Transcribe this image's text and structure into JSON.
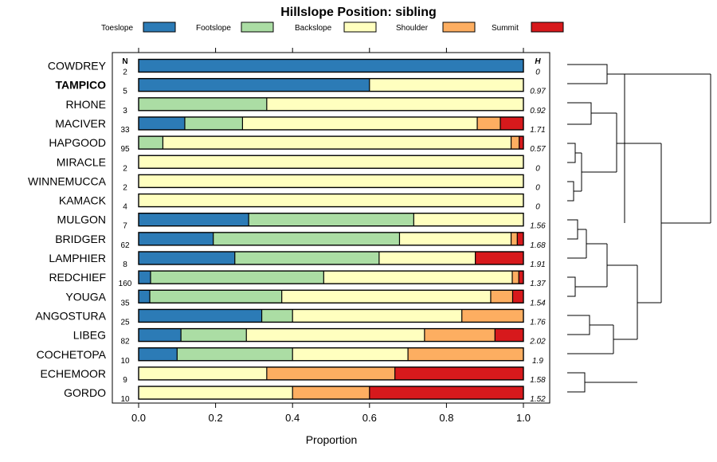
{
  "chart_data": {
    "type": "stacked-bar-horizontal",
    "title": "Hillslope Position: sibling",
    "xlabel": "Proportion",
    "xlim": [
      0,
      1
    ],
    "xticks": [
      "0.0",
      "0.2",
      "0.4",
      "0.6",
      "0.8",
      "1.0"
    ],
    "n_header": "N",
    "h_header": "H",
    "legend": [
      {
        "name": "Toeslope",
        "color": "#2c7bb6"
      },
      {
        "name": "Footslope",
        "color": "#abdda4"
      },
      {
        "name": "Backslope",
        "color": "#ffffbf"
      },
      {
        "name": "Shoulder",
        "color": "#fdae61"
      },
      {
        "name": "Summit",
        "color": "#d7191c"
      }
    ],
    "rows": [
      {
        "name": "COWDREY",
        "n": "2",
        "h": "0",
        "bold": false,
        "values": [
          1.0,
          0,
          0,
          0,
          0
        ]
      },
      {
        "name": "TAMPICO",
        "n": "5",
        "h": "0.97",
        "bold": true,
        "values": [
          0.6,
          0,
          0.4,
          0,
          0
        ]
      },
      {
        "name": "RHONE",
        "n": "3",
        "h": "0.92",
        "bold": false,
        "values": [
          0,
          0.333,
          0.667,
          0,
          0
        ]
      },
      {
        "name": "MACIVER",
        "n": "33",
        "h": "1.71",
        "bold": false,
        "values": [
          0.12,
          0.15,
          0.61,
          0.06,
          0.06
        ]
      },
      {
        "name": "HAPGOOD",
        "n": "95",
        "h": "0.57",
        "bold": false,
        "values": [
          0,
          0.063,
          0.905,
          0.021,
          0.011
        ]
      },
      {
        "name": "MIRACLE",
        "n": "2",
        "h": "0",
        "bold": false,
        "values": [
          0,
          0,
          1.0,
          0,
          0
        ]
      },
      {
        "name": "WINNEMUCCA",
        "n": "2",
        "h": "0",
        "bold": false,
        "values": [
          0,
          0,
          1.0,
          0,
          0
        ]
      },
      {
        "name": "KAMACK",
        "n": "4",
        "h": "0",
        "bold": false,
        "values": [
          0,
          0,
          1.0,
          0,
          0
        ]
      },
      {
        "name": "MULGON",
        "n": "7",
        "h": "1.56",
        "bold": false,
        "values": [
          0.286,
          0.429,
          0.285,
          0,
          0
        ]
      },
      {
        "name": "BRIDGER",
        "n": "62",
        "h": "1.68",
        "bold": false,
        "values": [
          0.194,
          0.484,
          0.29,
          0.016,
          0.016
        ]
      },
      {
        "name": "LAMPHIER",
        "n": "8",
        "h": "1.91",
        "bold": false,
        "values": [
          0.25,
          0.375,
          0.25,
          0,
          0.125
        ]
      },
      {
        "name": "REDCHIEF",
        "n": "160",
        "h": "1.37",
        "bold": false,
        "values": [
          0.031,
          0.45,
          0.49,
          0.017,
          0.012
        ]
      },
      {
        "name": "YOUGA",
        "n": "35",
        "h": "1.54",
        "bold": false,
        "values": [
          0.029,
          0.343,
          0.543,
          0.057,
          0.028
        ]
      },
      {
        "name": "ANGOSTURA",
        "n": "25",
        "h": "1.76",
        "bold": false,
        "values": [
          0.32,
          0.08,
          0.44,
          0.16,
          0
        ]
      },
      {
        "name": "LIBEG",
        "n": "82",
        "h": "2.02",
        "bold": false,
        "values": [
          0.11,
          0.17,
          0.463,
          0.183,
          0.074
        ]
      },
      {
        "name": "COCHETOPA",
        "n": "10",
        "h": "1.9",
        "bold": false,
        "values": [
          0.1,
          0.3,
          0.3,
          0.3,
          0
        ]
      },
      {
        "name": "ECHEMOOR",
        "n": "9",
        "h": "1.58",
        "bold": false,
        "values": [
          0,
          0,
          0.333,
          0.333,
          0.334
        ]
      },
      {
        "name": "GORDO",
        "n": "10",
        "h": "1.52",
        "bold": false,
        "values": [
          0,
          0,
          0.4,
          0.2,
          0.4
        ]
      }
    ]
  }
}
